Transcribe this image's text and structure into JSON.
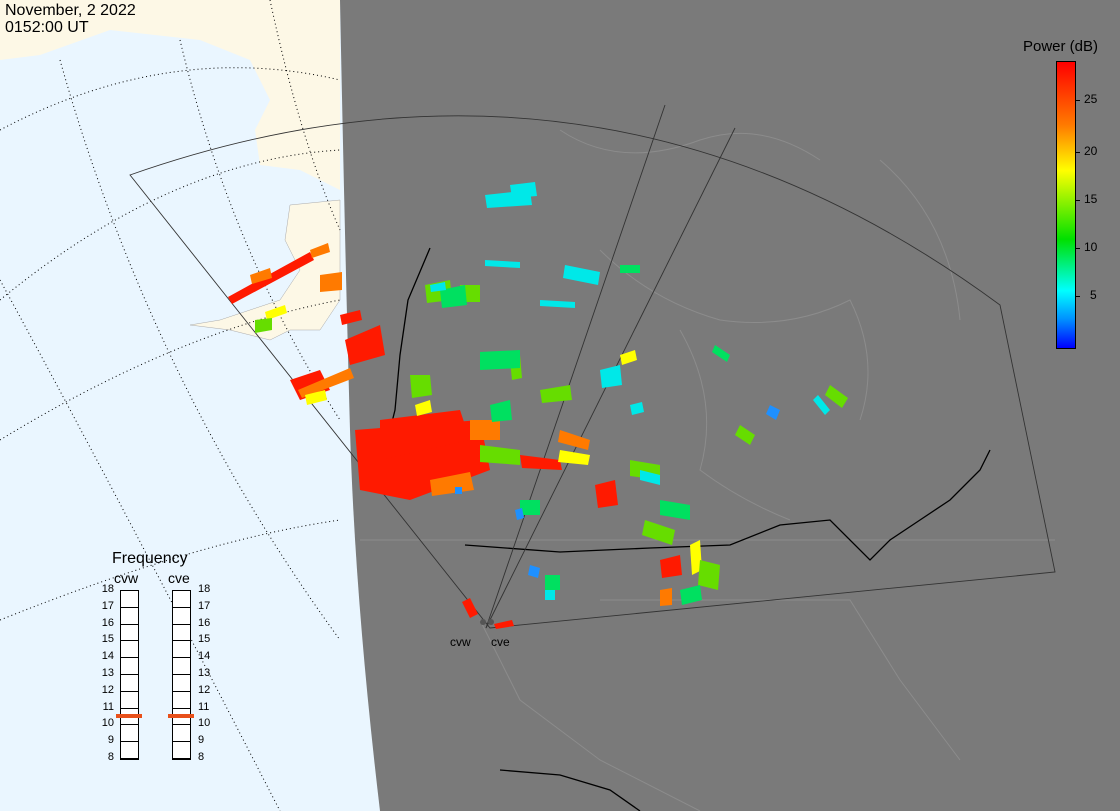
{
  "title": {
    "date": "November, 2 2022",
    "time": "0152:00 UT"
  },
  "colorbar": {
    "label": "Power (dB)",
    "ticks": [
      "25",
      "20",
      "15",
      "10",
      "5"
    ],
    "range": [
      0,
      29
    ],
    "colors": [
      "#0000ff",
      "#0090ff",
      "#00ffff",
      "#00e000",
      "#ffff00",
      "#ff7a00",
      "#ff0000"
    ]
  },
  "frequency_panel": {
    "title": "Frequency",
    "stations": [
      "cvw",
      "cve"
    ],
    "levels": [
      "18",
      "17",
      "16",
      "15",
      "14",
      "13",
      "12",
      "11",
      "10",
      "9",
      "8"
    ],
    "selected_mhz": {
      "cvw": 10.9,
      "cve": 10.9
    },
    "marker_color": "#e8501a"
  },
  "map": {
    "ocean_color": "#eaf6ff",
    "land_color": "#fdf8e6",
    "night_color": "#7a7a7a",
    "radar_sites": [
      "cvw",
      "cve"
    ]
  },
  "icons": [
    "dotted-graticule",
    "radar-fov-outline",
    "station-marker"
  ]
}
